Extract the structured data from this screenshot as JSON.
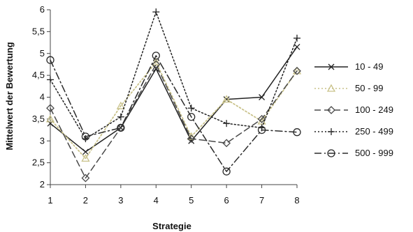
{
  "chart_data": {
    "type": "line",
    "title": "",
    "xlabel": "Strategie",
    "ylabel": "Mittelwert der Bewertung",
    "x": [
      1,
      2,
      3,
      4,
      5,
      6,
      7,
      8
    ],
    "xlim": [
      1,
      8
    ],
    "ylim": [
      2,
      6
    ],
    "yticks": [
      2,
      2.5,
      3,
      3.5,
      4,
      4.5,
      5,
      5.5,
      6
    ],
    "ytick_labels": [
      "2",
      "2,5",
      "3",
      "3,5",
      "4",
      "4,5",
      "5",
      "5,5",
      "6"
    ],
    "grid": false,
    "legend_position": "right",
    "series": [
      {
        "name": "10 - 49",
        "marker": "x",
        "stroke": "#222222",
        "dash": "",
        "values": [
          3.4,
          2.75,
          3.3,
          4.65,
          3.0,
          3.95,
          4.0,
          5.15
        ]
      },
      {
        "name": "50 - 99",
        "marker": "triangle",
        "stroke": "#c9c28a",
        "dash": "2 3",
        "values": [
          3.5,
          2.6,
          3.8,
          4.8,
          3.1,
          3.95,
          3.45,
          4.6
        ]
      },
      {
        "name": "100 - 249",
        "marker": "diamond",
        "stroke": "#4a4a4a",
        "dash": "9 5",
        "values": [
          3.75,
          2.15,
          3.3,
          4.75,
          3.05,
          2.95,
          3.5,
          4.6
        ]
      },
      {
        "name": "250 - 499",
        "marker": "plus",
        "stroke": "#222222",
        "dash": "2 3",
        "values": [
          4.4,
          3.05,
          3.55,
          5.95,
          3.75,
          3.4,
          3.3,
          5.35
        ]
      },
      {
        "name": "500 - 999",
        "marker": "circle",
        "stroke": "#2a2a2a",
        "dash": "10 4 2 4",
        "values": [
          4.85,
          3.1,
          3.3,
          4.95,
          3.55,
          2.3,
          3.25,
          3.2
        ]
      }
    ]
  }
}
